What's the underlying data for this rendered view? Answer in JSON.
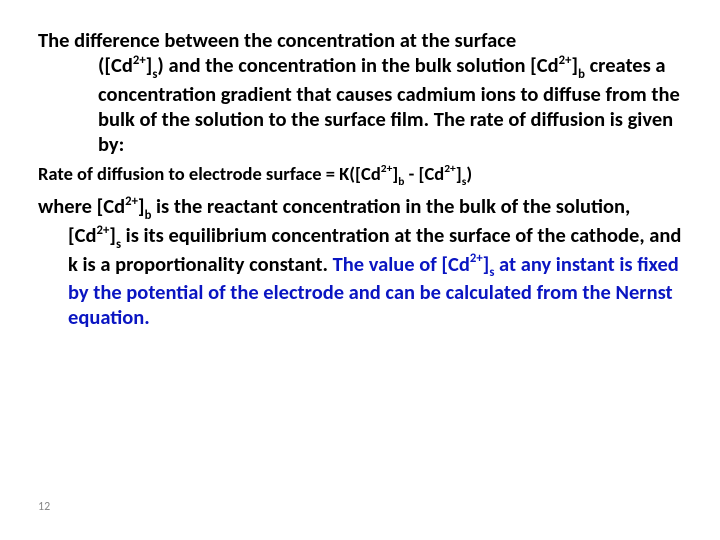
{
  "colors": {
    "text": "#000000",
    "accent": "#0a15c2",
    "background": "#ffffff",
    "pagenum": "#888888"
  },
  "fontsizes": {
    "body_main_pt": 20.5,
    "body_small_pt": 18.5,
    "pagenum_pt": 12
  },
  "p1": {
    "l1a": "The difference between the concentration at the surface",
    "l1b_pre": "([Cd",
    "l1b_sup1": "2+",
    "l1b_mid1": "]",
    "l1b_sub1": "s",
    "l1b_mid2": ") and the concentration in the bulk solution [Cd",
    "l1b_sup2": "2+",
    "l1b_mid3": "]",
    "l1b_sub2": "b",
    "l1c": "creates a concentration gradient that causes cadmium ions to diffuse from the bulk of the solution to the surface film. The rate of diffusion is given by:"
  },
  "p2": {
    "pre": "Rate of diffusion to electrode surface = K([Cd",
    "sup1": "2+",
    "m1": "]",
    "sub1": "b",
    "m2": " - [Cd",
    "sup2": "2+",
    "m3": "]",
    "sub2": "s",
    "post": ")"
  },
  "p3": {
    "a1": "where [Cd",
    "a_sup1": "2+",
    "a_m1": "]",
    "a_sub1": "b",
    "a2": " is the reactant concentration in the bulk of the solution, [Cd",
    "a_sup2": "2+",
    "a_m2": "]",
    "a_sub2": "s",
    "a3": " is its equilibrium concentration at the surface of the cathode, and k is a proportionality constant. ",
    "b1": "The value of [Cd",
    "b_sup1": "2+",
    "b_m1": "]",
    "b_sub1": "s",
    "b2": " at any instant is fixed by the potential of the electrode and can be calculated from the Nernst equation."
  },
  "pagenum": "12"
}
